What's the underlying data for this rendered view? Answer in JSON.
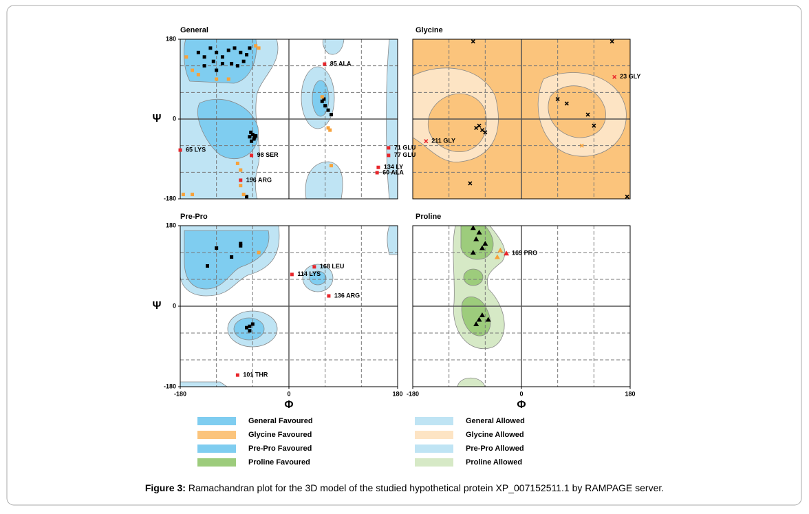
{
  "chart_data": [
    {
      "type": "scatter",
      "title": "General",
      "ylabel": "Ψ",
      "xlim": [
        -180,
        180
      ],
      "ylim": [
        -180,
        180
      ],
      "yticks": [
        180,
        0,
        -180
      ],
      "series": [
        {
          "color": "#000000",
          "marker": "square",
          "x": [
            -150,
            -140,
            -130,
            -120,
            -110,
            -100,
            -90,
            -80,
            -75,
            -85,
            -95,
            -110,
            -125,
            -70,
            -65,
            -140,
            -120,
            -65,
            -60,
            -58,
            -62,
            -55,
            -63,
            -57,
            55,
            60,
            65,
            70,
            58,
            -70
          ],
          "values": [
            150,
            140,
            160,
            150,
            140,
            155,
            160,
            150,
            130,
            120,
            125,
            125,
            130,
            145,
            160,
            120,
            110,
            -40,
            -35,
            -45,
            -50,
            -38,
            -30,
            -42,
            40,
            30,
            20,
            10,
            45,
            -175
          ]
        },
        {
          "color": "#f7a23b",
          "marker": "square",
          "x": [
            -55,
            -50,
            -170,
            -160,
            -150,
            -120,
            -100,
            55,
            65,
            68,
            70,
            -80,
            -85,
            -80,
            -75,
            -160,
            -175
          ],
          "values": [
            165,
            160,
            140,
            110,
            100,
            90,
            90,
            50,
            -20,
            -25,
            -105,
            -115,
            -100,
            -150,
            -170,
            -170,
            -170
          ]
        },
        {
          "color": "#e8262b",
          "marker": "square",
          "x": [
            -180,
            -62,
            59,
            165,
            165,
            148,
            146,
            -80
          ],
          "values": [
            -70,
            -82,
            124,
            -65,
            -82,
            -109,
            -121,
            -138
          ],
          "labels": [
            "65 LYS",
            "98 SER",
            "85 ALA",
            "71 GLU",
            "77 GLU",
            "134 LY",
            "60 ALA",
            "196 ARG"
          ]
        }
      ]
    },
    {
      "type": "scatter",
      "title": "Glycine",
      "xlim": [
        -180,
        180
      ],
      "ylim": [
        -180,
        180
      ],
      "series": [
        {
          "color": "#000000",
          "marker": "x",
          "x": [
            -80,
            150,
            -60,
            -65,
            -75,
            -70,
            60,
            75,
            110,
            120,
            -85,
            175
          ],
          "values": [
            175,
            175,
            -30,
            -25,
            -20,
            -15,
            45,
            35,
            10,
            -15,
            -145,
            -175
          ]
        },
        {
          "color": "#f7a23b",
          "marker": "x",
          "x": [
            100
          ],
          "values": [
            -60
          ]
        },
        {
          "color": "#e8262b",
          "marker": "x",
          "x": [
            -158,
            154
          ],
          "values": [
            -50,
            95
          ],
          "labels": [
            "211 GLY",
            "23 GLY"
          ]
        }
      ]
    },
    {
      "type": "scatter",
      "title": "Pre-Pro",
      "ylabel": "Ψ",
      "xlabel": "Φ",
      "xlim": [
        -180,
        180
      ],
      "ylim": [
        -180,
        180
      ],
      "xticks": [
        -180,
        0,
        180
      ],
      "yticks": [
        180,
        0,
        -180
      ],
      "series": [
        {
          "color": "#000000",
          "marker": "square",
          "x": [
            -120,
            -80,
            -80,
            -95,
            -135,
            -65,
            -60,
            -65,
            -70
          ],
          "values": [
            130,
            140,
            135,
            110,
            90,
            -45,
            -40,
            -55,
            -48
          ]
        },
        {
          "color": "#f7a23b",
          "marker": "square",
          "x": [
            -50
          ],
          "values": [
            120
          ]
        },
        {
          "color": "#e8262b",
          "marker": "square",
          "x": [
            42,
            5,
            66,
            -85
          ],
          "values": [
            88,
            71,
            23,
            -154
          ],
          "labels": [
            "168 LEU",
            "114 LYS",
            "136 ARG",
            "101 THR"
          ]
        }
      ]
    },
    {
      "type": "scatter",
      "title": "Proline",
      "xlabel": "Φ",
      "xlim": [
        -180,
        180
      ],
      "ylim": [
        -180,
        180
      ],
      "xticks": [
        -180,
        0,
        180
      ],
      "series": [
        {
          "color": "#000000",
          "marker": "triangle",
          "x": [
            -80,
            -70,
            -75,
            -65,
            -60,
            -80,
            -70,
            -75,
            -65,
            -55
          ],
          "values": [
            175,
            165,
            150,
            130,
            140,
            120,
            -30,
            -40,
            -20,
            -30
          ]
        },
        {
          "color": "#f7a23b",
          "marker": "triangle",
          "x": [
            -40,
            -35
          ],
          "values": [
            110,
            125
          ]
        },
        {
          "color": "#e8262b",
          "marker": "triangle",
          "x": [
            -25
          ],
          "values": [
            118
          ],
          "labels": [
            "169 PRO"
          ]
        }
      ]
    }
  ],
  "legend": [
    {
      "label": "General Favoured",
      "color": "#7fcdf0"
    },
    {
      "label": "General Allowed",
      "color": "#bfe4f4"
    },
    {
      "label": "Glycine Favoured",
      "color": "#fbc47c"
    },
    {
      "label": "Glycine Allowed",
      "color": "#fde4c4"
    },
    {
      "label": "Pre-Pro Favoured",
      "color": "#7fcdf0"
    },
    {
      "label": "Pre-Pro Allowed",
      "color": "#bfe4f4"
    },
    {
      "label": "Proline Favoured",
      "color": "#9dcc7c"
    },
    {
      "label": "Proline Allowed",
      "color": "#d6e9c6"
    }
  ],
  "caption": {
    "label": "Figure 3:",
    "text": " Ramachandran plot for the 3D model of the studied hypothetical protein XP_007152511.1 by RAMPAGE server."
  }
}
